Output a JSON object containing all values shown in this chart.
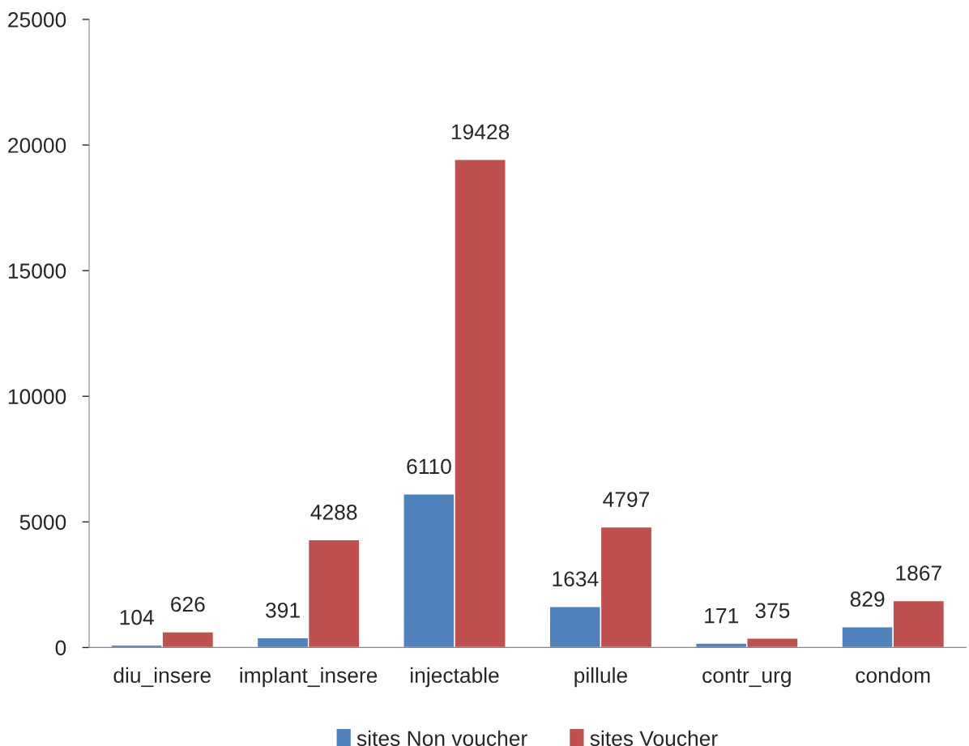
{
  "chart_data": {
    "type": "bar",
    "categories": [
      "diu_insere",
      "implant_insere",
      "injectable",
      "pillule",
      "contr_urg",
      "condom"
    ],
    "series": [
      {
        "name": "sites Non voucher",
        "color": "#4f81bd",
        "values": [
          104,
          391,
          6110,
          1634,
          171,
          829
        ]
      },
      {
        "name": "sites Voucher",
        "color": "#c0504d",
        "values": [
          626,
          4288,
          19428,
          4797,
          375,
          1867
        ]
      }
    ],
    "ylim": [
      0,
      25000
    ],
    "yticks": [
      0,
      5000,
      10000,
      15000,
      20000,
      25000
    ],
    "data_labels": true,
    "legend": "bottom",
    "grid": false
  }
}
